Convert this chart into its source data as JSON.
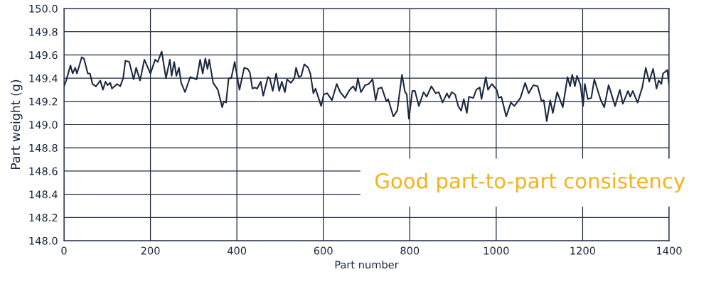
{
  "chart_data": {
    "type": "line",
    "xlabel": "Part number",
    "ylabel": "Part weight (g)",
    "annotations": [
      "Good part-to-part consistency"
    ],
    "grid": true,
    "marker": "none",
    "line_style": "solid",
    "xlim": [
      0,
      1400
    ],
    "xticks": [
      0,
      200,
      400,
      600,
      800,
      1000,
      1200,
      1400
    ],
    "ylim": [
      148.0,
      150.0
    ],
    "yticks": [
      {
        "value": 148.0,
        "label": "148.0"
      },
      {
        "value": 148.2,
        "label": "148.2"
      },
      {
        "value": 148.4,
        "label": "148.4"
      },
      {
        "value": 148.6,
        "label": "148.6"
      },
      {
        "value": 148.8,
        "label": "148.8"
      },
      {
        "value": 149.0,
        "label": "149.0"
      },
      {
        "value": 149.2,
        "label": "149.2"
      },
      {
        "value": 149.4,
        "label": "149.4"
      },
      {
        "value": 149.6,
        "label": "149.6"
      },
      {
        "value": 149.8,
        "label": "149.8"
      },
      {
        "value": 150.0,
        "label": "150.0"
      }
    ],
    "series": [
      {
        "color": "#1c2a40",
        "x": [
          0,
          5,
          15,
          20,
          26,
          30,
          41,
          46,
          55,
          60,
          66,
          74,
          84,
          90,
          96,
          101,
          107,
          111,
          123,
          130,
          137,
          142,
          151,
          161,
          167,
          176,
          186,
          200,
          211,
          217,
          226,
          236,
          245,
          249,
          255,
          260,
          266,
          271,
          280,
          292,
          307,
          315,
          321,
          327,
          332,
          336,
          345,
          356,
          366,
          370,
          375,
          381,
          387,
          395,
          406,
          417,
          425,
          430,
          436,
          441,
          447,
          455,
          461,
          472,
          476,
          483,
          491,
          498,
          504,
          511,
          516,
          525,
          533,
          537,
          543,
          549,
          556,
          565,
          570,
          577,
          582,
          595,
          601,
          609,
          620,
          631,
          639,
          650,
          661,
          669,
          675,
          680,
          687,
          697,
          705,
          714,
          721,
          727,
          735,
          746,
          750,
          762,
          771,
          782,
          789,
          793,
          798,
          806,
          812,
          821,
          832,
          839,
          850,
          860,
          867,
          876,
          886,
          891,
          897,
          905,
          912,
          919,
          925,
          932,
          937,
          947,
          954,
          962,
          966,
          976,
          981,
          990,
          1001,
          1006,
          1012,
          1023,
          1034,
          1042,
          1056,
          1067,
          1075,
          1086,
          1096,
          1105,
          1110,
          1117,
          1125,
          1131,
          1141,
          1154,
          1165,
          1171,
          1176,
          1182,
          1187,
          1195,
          1201,
          1205,
          1212,
          1220,
          1227,
          1236,
          1242,
          1250,
          1260,
          1266,
          1275,
          1286,
          1293,
          1305,
          1310,
          1316,
          1327,
          1338,
          1346,
          1354,
          1363,
          1371,
          1376,
          1382,
          1386,
          1396,
          1400
        ],
        "values": [
          149.33,
          149.38,
          149.51,
          149.44,
          149.49,
          149.44,
          149.58,
          149.57,
          149.44,
          149.44,
          149.35,
          149.33,
          149.38,
          149.3,
          149.37,
          149.34,
          149.36,
          149.31,
          149.35,
          149.33,
          149.4,
          149.55,
          149.54,
          149.39,
          149.49,
          149.38,
          149.56,
          149.44,
          149.56,
          149.54,
          149.63,
          149.4,
          149.56,
          149.42,
          149.54,
          149.42,
          149.49,
          149.36,
          149.28,
          149.41,
          149.39,
          149.56,
          149.44,
          149.57,
          149.48,
          149.56,
          149.36,
          149.3,
          149.15,
          149.2,
          149.19,
          149.4,
          149.4,
          149.54,
          149.3,
          149.49,
          149.48,
          149.45,
          149.31,
          149.32,
          149.31,
          149.37,
          149.25,
          149.41,
          149.4,
          149.29,
          149.44,
          149.29,
          149.37,
          149.28,
          149.39,
          149.36,
          149.4,
          149.49,
          149.41,
          149.42,
          149.52,
          149.49,
          149.44,
          149.27,
          149.31,
          149.16,
          149.26,
          149.27,
          149.21,
          149.35,
          149.28,
          149.23,
          149.3,
          149.33,
          149.29,
          149.4,
          149.28,
          149.34,
          149.35,
          149.39,
          149.21,
          149.31,
          149.32,
          149.2,
          149.22,
          149.07,
          149.12,
          149.43,
          149.28,
          149.26,
          149.05,
          149.29,
          149.29,
          149.16,
          149.28,
          149.24,
          149.33,
          149.27,
          149.28,
          149.19,
          149.27,
          149.23,
          149.28,
          149.26,
          149.16,
          149.12,
          149.22,
          149.1,
          149.24,
          149.23,
          149.3,
          149.32,
          149.22,
          149.41,
          149.3,
          149.35,
          149.3,
          149.23,
          149.24,
          149.07,
          149.19,
          149.16,
          149.23,
          149.36,
          149.27,
          149.34,
          149.33,
          149.2,
          149.21,
          149.03,
          149.21,
          149.1,
          149.28,
          149.15,
          149.41,
          149.33,
          149.43,
          149.33,
          149.42,
          149.34,
          149.16,
          149.35,
          149.22,
          149.23,
          149.39,
          149.28,
          149.21,
          149.15,
          149.34,
          149.27,
          149.16,
          149.3,
          149.18,
          149.29,
          149.24,
          149.29,
          149.19,
          149.32,
          149.49,
          149.37,
          149.48,
          149.31,
          149.38,
          149.35,
          149.44,
          149.47,
          149.34
        ]
      }
    ]
  }
}
